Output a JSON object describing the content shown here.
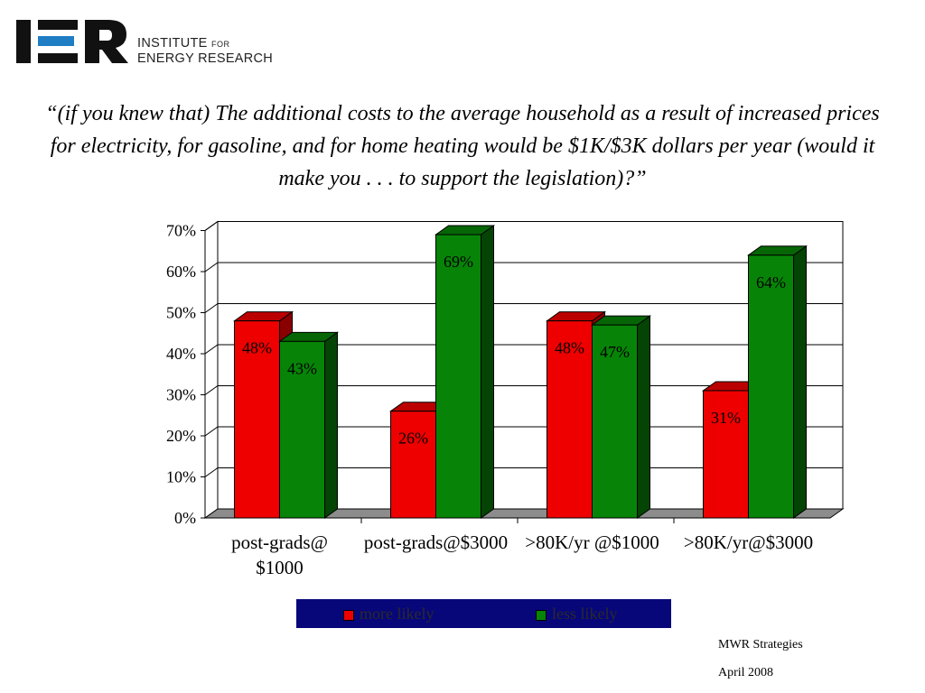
{
  "logo": {
    "letters": "IER",
    "line1_main": "INSTITUTE",
    "line1_small": "FOR",
    "line2": "ENERGY RESEARCH"
  },
  "headline": "“(if you knew that) The additional costs to the average household as a result of increased prices for electricity, for gasoline, and for home heating would be $1K/$3K dollars per year (would it make you . . . to support the legislation)?”",
  "chart_data": {
    "type": "bar",
    "categories": [
      [
        "post-grads@",
        "$1000"
      ],
      [
        "post-grads@$3000"
      ],
      [
        ">80K/yr @$1000"
      ],
      [
        ">80K/yr@$3000"
      ]
    ],
    "series": [
      {
        "name": "more likely",
        "values": [
          48,
          26,
          48,
          31
        ],
        "labels": [
          "48%",
          "26%",
          "48%",
          "31%"
        ],
        "color": "#ee0000",
        "top_color": "#bb0000",
        "side_color": "#8a0000"
      },
      {
        "name": "less likely",
        "values": [
          43,
          69,
          47,
          64
        ],
        "labels": [
          "43%",
          "69%",
          "47%",
          "64%"
        ],
        "color": "#078407",
        "top_color": "#066606",
        "side_color": "#044404"
      }
    ],
    "y_ticks": [
      "0%",
      "10%",
      "20%",
      "30%",
      "40%",
      "50%",
      "60%",
      "70%"
    ],
    "ylim": [
      0,
      70
    ],
    "grid": true,
    "legend_position": "bottom"
  },
  "legend": {
    "background": "#07077a",
    "items": [
      {
        "label": "more likely",
        "color": "#ee0000"
      },
      {
        "label": "less likely",
        "color": "#078407"
      }
    ]
  },
  "footer": {
    "source": "MWR Strategies",
    "date": "April 2008"
  }
}
